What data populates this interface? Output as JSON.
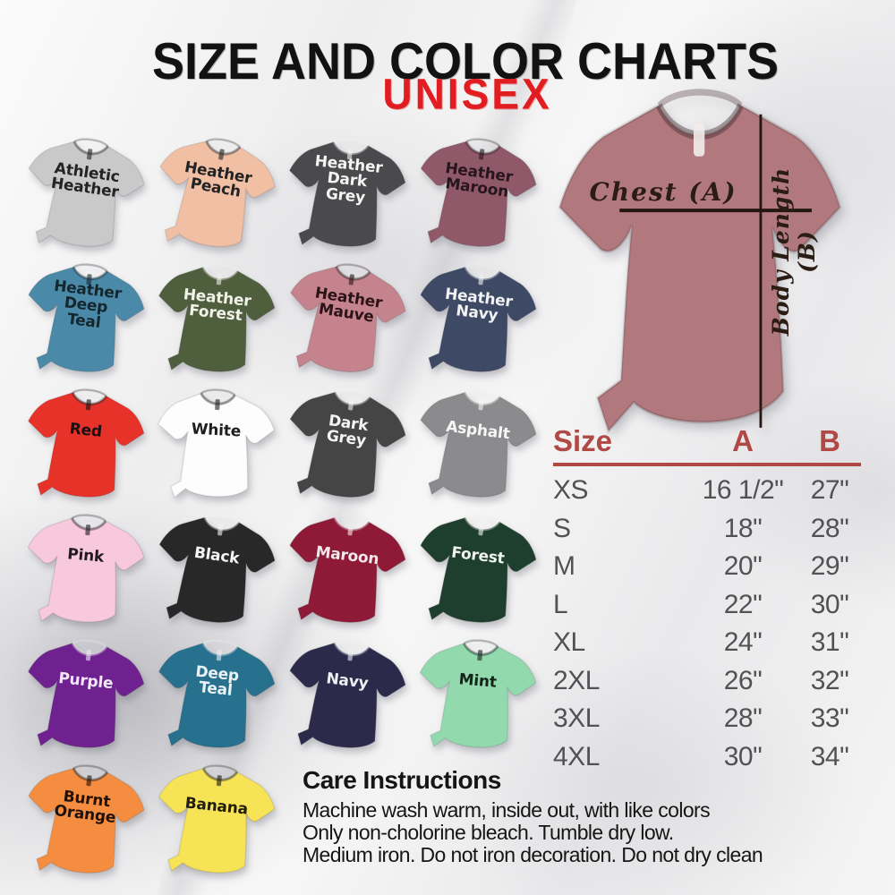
{
  "header": {
    "title": "SIZE AND COLOR CHARTS",
    "subtitle": "UNISEX"
  },
  "colors": {
    "title_black": "#121212",
    "unisex_red": "#e21d22",
    "table_header_red": "#b04845",
    "table_row_grey": "#525254",
    "measure_line": "#241612"
  },
  "shirts": [
    {
      "name": "Athletic Heather",
      "label": "Athletic\nHeather",
      "fill": "#c9c9c9",
      "text": "#232323"
    },
    {
      "name": "Heather Peach",
      "label": "Heather\nPeach",
      "fill": "#f1c0a4",
      "text": "#232323"
    },
    {
      "name": "Heather Dark Grey",
      "label": "Heather\nDark\nGrey",
      "fill": "#4a4a4c",
      "text": "#f4f4f4"
    },
    {
      "name": "Heather Maroon",
      "label": "Heather\nMaroon",
      "fill": "#90596a",
      "text": "#27161c"
    },
    {
      "name": "Heather Deep Teal",
      "label": "Heather\nDeep\nTeal",
      "fill": "#4a89a7",
      "text": "#14262e"
    },
    {
      "name": "Heather Forest",
      "label": "Heather\nForest",
      "fill": "#4f5e3d",
      "text": "#f2f2ea"
    },
    {
      "name": "Heather Mauve",
      "label": "Heather\nMauve",
      "fill": "#c5848d",
      "text": "#2b1318"
    },
    {
      "name": "Heather Navy",
      "label": "Heather\nNavy",
      "fill": "#3e4966",
      "text": "#f2f2f2"
    },
    {
      "name": "Red",
      "label": "Red",
      "fill": "#e63228",
      "text": "#1c1010"
    },
    {
      "name": "White",
      "label": "White",
      "fill": "#fdfdfd",
      "text": "#1e1e1e"
    },
    {
      "name": "Dark Grey",
      "label": "Dark\nGrey",
      "fill": "#454546",
      "text": "#f4f4f4"
    },
    {
      "name": "Asphalt",
      "label": "Asphalt",
      "fill": "#8b8b8d",
      "text": "#f6f6f6"
    },
    {
      "name": "Pink",
      "label": "Pink",
      "fill": "#f8c9dd",
      "text": "#231a20"
    },
    {
      "name": "Black",
      "label": "Black",
      "fill": "#282828",
      "text": "#f5f5f5"
    },
    {
      "name": "Maroon",
      "label": "Maroon",
      "fill": "#8e1a38",
      "text": "#f3e9ec"
    },
    {
      "name": "Forest",
      "label": "Forest",
      "fill": "#1f3f2e",
      "text": "#eef3ef"
    },
    {
      "name": "Purple",
      "label": "Purple",
      "fill": "#6f2190",
      "text": "#f1e8f5"
    },
    {
      "name": "Deep Teal",
      "label": "Deep\nTeal",
      "fill": "#27708e",
      "text": "#eaf2f5"
    },
    {
      "name": "Navy",
      "label": "Navy",
      "fill": "#2c2a4b",
      "text": "#efeff3"
    },
    {
      "name": "Mint",
      "label": "Mint",
      "fill": "#93d9ae",
      "text": "#15241b"
    },
    {
      "name": "Burnt Orange",
      "label": "Burnt\nOrange",
      "fill": "#f58d41",
      "text": "#201208"
    },
    {
      "name": "Banana",
      "label": "Banana",
      "fill": "#f6e356",
      "text": "#211d0d"
    }
  ],
  "measurement": {
    "shirt_color": "#b1797e",
    "chest_label": "Chest (A)",
    "body_length_label": "Body Length (B)"
  },
  "size_table": {
    "headers": [
      "Size",
      "A",
      "B"
    ],
    "rows": [
      [
        "XS",
        "16 1/2\"",
        "27\""
      ],
      [
        "S",
        "18\"",
        "28\""
      ],
      [
        "M",
        "20\"",
        "29\""
      ],
      [
        "L",
        "22\"",
        "30\""
      ],
      [
        "XL",
        "24\"",
        "31\""
      ],
      [
        "2XL",
        "26\"",
        "32\""
      ],
      [
        "3XL",
        "28\"",
        "33\""
      ],
      [
        "4XL",
        "30\"",
        "34\""
      ]
    ]
  },
  "care": {
    "heading": "Care Instructions",
    "lines": [
      "Machine wash warm, inside out, with like colors",
      "Only non-cholorine bleach. Tumble dry low.",
      "Medium iron. Do not iron decoration. Do not dry clean"
    ]
  }
}
